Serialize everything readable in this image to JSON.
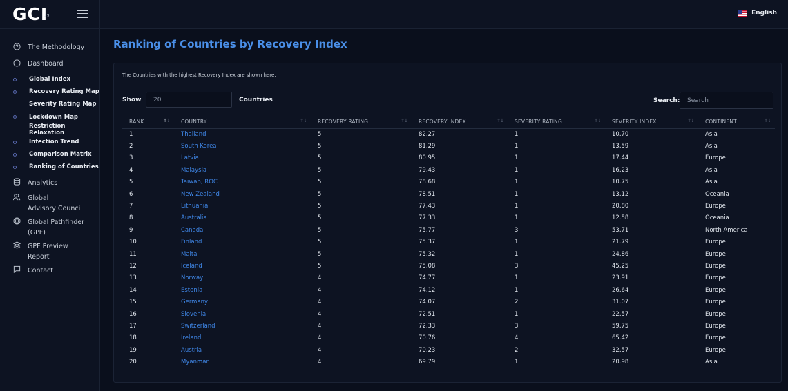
{
  "brand": {
    "logo_text": "GCI",
    "logo_sup": "19"
  },
  "topbar": {
    "language": "English"
  },
  "sidebar": {
    "items": [
      {
        "type": "main",
        "label": "The Methodology",
        "icon": "help-circle-icon"
      },
      {
        "type": "main",
        "label": "Dashboard",
        "icon": "pie-chart-icon"
      },
      {
        "type": "sub",
        "label": "Global Index",
        "dot": true
      },
      {
        "type": "sub",
        "label": "Recovery Rating Map",
        "dot": true
      },
      {
        "type": "sub",
        "label": "Severity Rating Map",
        "dot": false
      },
      {
        "type": "sub",
        "label": "Lockdown Map",
        "dot": true
      },
      {
        "type": "sub",
        "label": "Restriction Relaxation",
        "dot": false
      },
      {
        "type": "sub",
        "label": "Infection Trend",
        "dot": true
      },
      {
        "type": "sub",
        "label": "Comparison Matrix",
        "dot": true
      },
      {
        "type": "sub",
        "label": "Ranking of Countries",
        "dot": true
      },
      {
        "type": "main",
        "label": "Analytics",
        "icon": "database-icon"
      },
      {
        "type": "main",
        "label": "Global Advisory Council",
        "line1": "Global",
        "line2": "Advisory Council",
        "icon": "users-icon"
      },
      {
        "type": "main",
        "label": "Global Pathfinder (GPF)",
        "line1": "Global Pathfinder",
        "line2": "(GPF)",
        "icon": "globe-icon"
      },
      {
        "type": "main",
        "label": "GPF Preview Report",
        "line1": "GPF Preview",
        "line2": "Report",
        "icon": "layers-icon"
      },
      {
        "type": "main",
        "label": "Contact",
        "icon": "message-icon"
      }
    ]
  },
  "page": {
    "title": "Ranking of Countries by Recovery Index"
  },
  "card": {
    "description": "The Countries with the highest Recovery Index are shown here.",
    "show_label": "Show",
    "show_value": "20",
    "countries_label": "Countries",
    "search_label": "Search:",
    "search_placeholder": "Search"
  },
  "table": {
    "headers": [
      "RANK",
      "COUNTRY",
      "RECOVERY RATING",
      "RECOVERY INDEX",
      "SEVERITY RATING",
      "SEVERITY INDEX",
      "CONTINENT"
    ],
    "rows": [
      [
        "1",
        "Thailand",
        "5",
        "82.27",
        "1",
        "10.70",
        "Asia"
      ],
      [
        "2",
        "South Korea",
        "5",
        "81.29",
        "1",
        "13.59",
        "Asia"
      ],
      [
        "3",
        "Latvia",
        "5",
        "80.95",
        "1",
        "17.44",
        "Europe"
      ],
      [
        "4",
        "Malaysia",
        "5",
        "79.43",
        "1",
        "16.23",
        "Asia"
      ],
      [
        "5",
        "Taiwan, ROC",
        "5",
        "78.68",
        "1",
        "10.75",
        "Asia"
      ],
      [
        "6",
        "New Zealand",
        "5",
        "78.51",
        "1",
        "13.12",
        "Oceania"
      ],
      [
        "7",
        "Lithuania",
        "5",
        "77.43",
        "1",
        "20.80",
        "Europe"
      ],
      [
        "8",
        "Australia",
        "5",
        "77.33",
        "1",
        "12.58",
        "Oceania"
      ],
      [
        "9",
        "Canada",
        "5",
        "75.77",
        "3",
        "53.71",
        "North America"
      ],
      [
        "10",
        "Finland",
        "5",
        "75.37",
        "1",
        "21.79",
        "Europe"
      ],
      [
        "11",
        "Malta",
        "5",
        "75.32",
        "1",
        "24.86",
        "Europe"
      ],
      [
        "12",
        "Iceland",
        "5",
        "75.08",
        "3",
        "45.25",
        "Europe"
      ],
      [
        "13",
        "Norway",
        "4",
        "74.77",
        "1",
        "23.91",
        "Europe"
      ],
      [
        "14",
        "Estonia",
        "4",
        "74.12",
        "1",
        "26.64",
        "Europe"
      ],
      [
        "15",
        "Germany",
        "4",
        "74.07",
        "2",
        "31.07",
        "Europe"
      ],
      [
        "16",
        "Slovenia",
        "4",
        "72.51",
        "1",
        "22.57",
        "Europe"
      ],
      [
        "17",
        "Switzerland",
        "4",
        "72.33",
        "3",
        "59.75",
        "Europe"
      ],
      [
        "18",
        "Ireland",
        "4",
        "70.76",
        "4",
        "65.42",
        "Europe"
      ],
      [
        "19",
        "Austria",
        "4",
        "70.23",
        "2",
        "32.57",
        "Europe"
      ],
      [
        "20",
        "Myanmar",
        "4",
        "69.79",
        "1",
        "20.98",
        "Asia"
      ]
    ]
  },
  "colors": {
    "accent": "#4a8fe8",
    "link": "#3f86e6",
    "background": "#0a0f1c",
    "panel": "#0d1322"
  }
}
